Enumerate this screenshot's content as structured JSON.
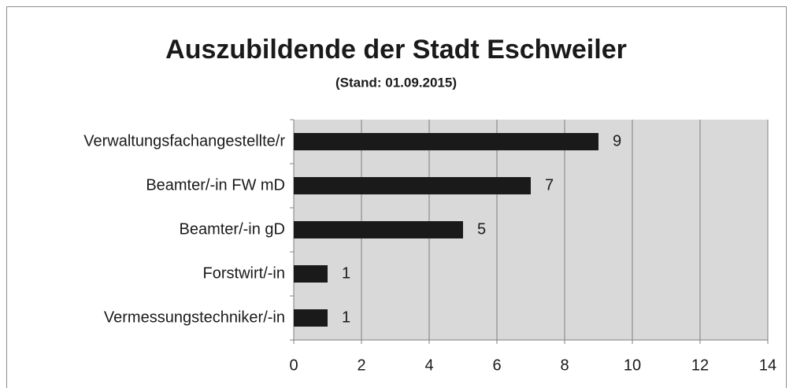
{
  "chart_data": {
    "type": "barh",
    "title": "Auszubildende der Stadt Eschweiler",
    "subtitle": "(Stand: 01.09.2015)",
    "categories": [
      "Verwaltungsfachangestellte/r",
      "Beamter/-in FW mD",
      "Beamter/-in gD",
      "Forstwirt/-in",
      "Vermessungstechniker/-in"
    ],
    "values": [
      9,
      7,
      5,
      1,
      1
    ],
    "color": "#1a1a1a",
    "xlim": [
      0,
      14
    ],
    "xticks": [
      0,
      2,
      4,
      6,
      8,
      10,
      12,
      14
    ],
    "grid": true
  }
}
